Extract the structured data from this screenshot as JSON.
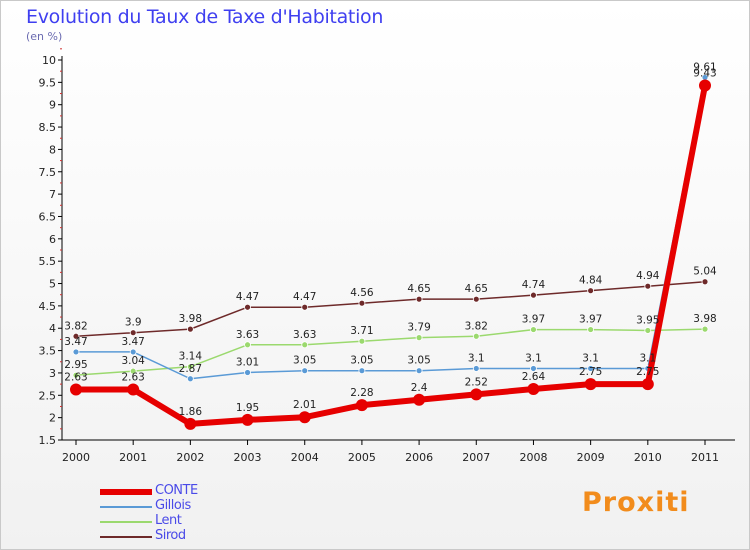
{
  "header": {
    "title": "Evolution du Taux de Taxe d'Habitation",
    "subtitle": "(en %)"
  },
  "brand": {
    "text": "Proxiti",
    "color": "#f28c1c"
  },
  "chart_data": {
    "type": "line",
    "title": "Evolution du Taux de Taxe d'Habitation",
    "ylabel": "(en %)",
    "xlabel": "",
    "ylim": [
      1.5,
      10
    ],
    "yticks": [
      "1.5",
      "2",
      "2.5",
      "3",
      "3.5",
      "4",
      "4.5",
      "5",
      "5.5",
      "6",
      "6.5",
      "7",
      "7.5",
      "8",
      "8.5",
      "9",
      "9.5",
      "10"
    ],
    "categories": [
      "2000",
      "2001",
      "2002",
      "2003",
      "2004",
      "2005",
      "2006",
      "2007",
      "2008",
      "2009",
      "2010",
      "2011"
    ],
    "grid": false,
    "legend": "bottom-left",
    "series": [
      {
        "name": "Sirod",
        "color": "#6e2a2a",
        "width": 1.5,
        "marker": 3,
        "values": [
          3.82,
          3.9,
          3.98,
          4.47,
          4.47,
          4.56,
          4.65,
          4.65,
          4.74,
          4.84,
          4.94,
          5.04
        ],
        "labels": [
          "3.82",
          "3.9",
          "3.98",
          "4.47",
          "4.47",
          "4.56",
          "4.65",
          "4.65",
          "4.74",
          "4.84",
          "4.94",
          "5.04"
        ]
      },
      {
        "name": "Lent",
        "color": "#9bd96e",
        "width": 1.5,
        "marker": 3,
        "values": [
          2.95,
          3.04,
          3.14,
          3.63,
          3.63,
          3.71,
          3.79,
          3.82,
          3.97,
          3.97,
          3.95,
          3.98
        ],
        "labels": [
          "2.95",
          "3.04",
          "3.14",
          "3.63",
          "3.63",
          "3.71",
          "3.79",
          "3.82",
          "3.97",
          "3.97",
          "3.95",
          "3.98"
        ]
      },
      {
        "name": "Gillois",
        "color": "#5a9ad6",
        "width": 1.5,
        "marker": 3,
        "values": [
          3.47,
          3.47,
          2.87,
          3.01,
          3.05,
          3.05,
          3.05,
          3.1,
          3.1,
          3.1,
          3.1,
          9.61
        ],
        "labels": [
          "3.47",
          "3.47",
          "2.87",
          "3.01",
          "3.05",
          "3.05",
          "3.05",
          "3.1",
          "3.1",
          "3.1",
          "3.1",
          "9.61"
        ]
      },
      {
        "name": "CONTE",
        "color": "#e60000",
        "width": 6,
        "marker": 6,
        "values": [
          2.63,
          2.63,
          1.86,
          1.95,
          2.01,
          2.28,
          2.4,
          2.52,
          2.64,
          2.75,
          2.75,
          9.43
        ],
        "labels": [
          "2.63",
          "2.63",
          "1.86",
          "1.95",
          "2.01",
          "2.28",
          "2.4",
          "2.52",
          "2.64",
          "2.75",
          "2.75",
          "9.43"
        ]
      }
    ]
  },
  "legend": {
    "items": [
      {
        "label": "CONTE",
        "color": "#e60000",
        "thick": 6
      },
      {
        "label": "Gillois",
        "color": "#5a9ad6",
        "thick": 2
      },
      {
        "label": "Lent",
        "color": "#9bd96e",
        "thick": 2
      },
      {
        "label": "Sirod",
        "color": "#6e2a2a",
        "thick": 2
      }
    ]
  }
}
